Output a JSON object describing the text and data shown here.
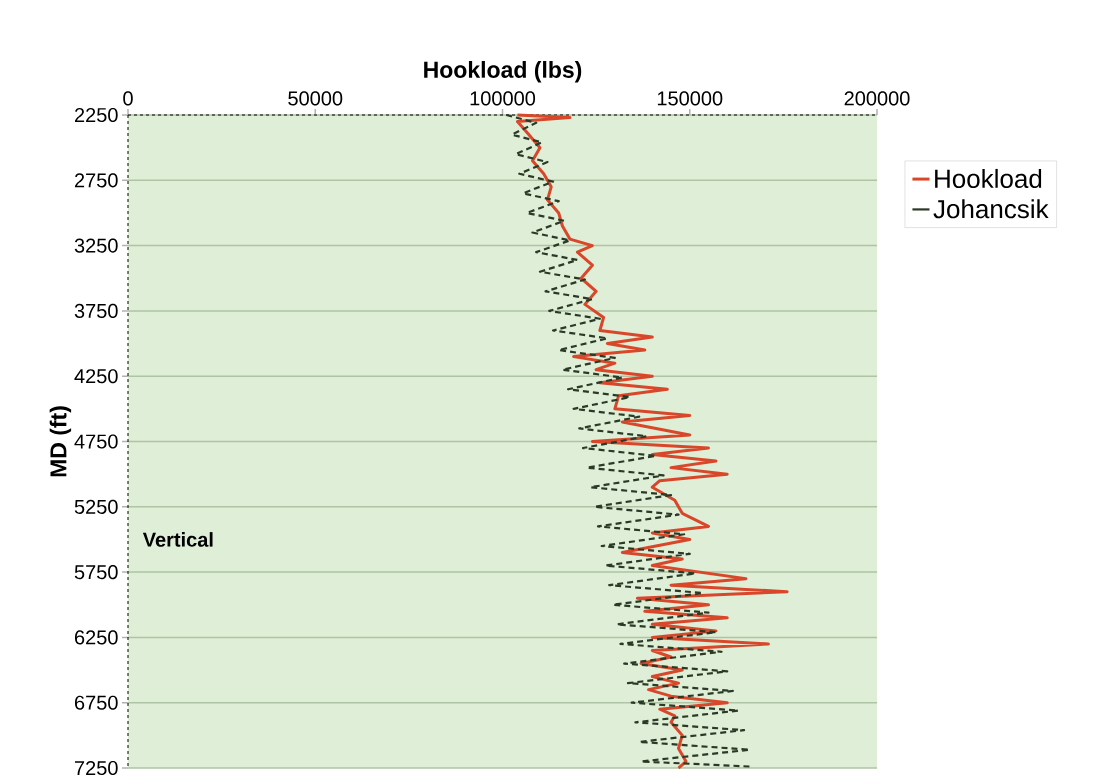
{
  "chart_data": {
    "type": "line",
    "xlabel": "Hookload (lbs)",
    "ylabel": "MD (ft)",
    "xlim": [
      0,
      200000
    ],
    "xticks": [
      0,
      50000,
      100000,
      150000,
      200000
    ],
    "ylim": [
      7250,
      2250
    ],
    "yticks": [
      2250,
      2750,
      3250,
      3750,
      4250,
      4750,
      5250,
      5750,
      6250,
      6750,
      7250
    ],
    "grid": "y",
    "legend": "right",
    "annotations": [
      "Vertical"
    ],
    "series": [
      {
        "name": "Hookload",
        "type": "line",
        "color": "#d9472b",
        "line_style": "solid",
        "x": [
          104000,
          118000,
          104000,
          107000,
          110000,
          108000,
          111000,
          113000,
          112000,
          115000,
          116000,
          118000,
          124000,
          120000,
          124000,
          121000,
          125000,
          122000,
          127000,
          126000,
          140000,
          128000,
          138000,
          119000,
          130000,
          125000,
          140000,
          126000,
          144000,
          131000,
          130000,
          150000,
          132000,
          150000,
          124000,
          155000,
          140000,
          157000,
          145000,
          160000,
          142000,
          140000,
          146000,
          148000,
          155000,
          140000,
          150000,
          132000,
          148000,
          140000,
          165000,
          145000,
          176000,
          136000,
          155000,
          138000,
          160000,
          140000,
          157000,
          140000,
          171000,
          140000,
          145000,
          137000,
          148000,
          140000,
          147000,
          139000,
          145000,
          160000,
          142000,
          146000,
          145000,
          148000,
          147000,
          149000,
          147000
        ],
        "values": [
          2250,
          2270,
          2300,
          2400,
          2500,
          2600,
          2700,
          2800,
          2900,
          3000,
          3100,
          3200,
          3250,
          3300,
          3400,
          3500,
          3600,
          3700,
          3800,
          3900,
          3950,
          4000,
          4050,
          4100,
          4150,
          4200,
          4250,
          4300,
          4350,
          4400,
          4500,
          4550,
          4600,
          4700,
          4750,
          4800,
          4850,
          4900,
          4950,
          5000,
          5050,
          5100,
          5200,
          5300,
          5400,
          5450,
          5500,
          5600,
          5650,
          5700,
          5800,
          5850,
          5900,
          5950,
          6000,
          6050,
          6100,
          6150,
          6200,
          6250,
          6300,
          6350,
          6400,
          6450,
          6500,
          6550,
          6600,
          6650,
          6700,
          6750,
          6800,
          6850,
          6900,
          7000,
          7100,
          7200,
          7250
        ]
      },
      {
        "name": "Johancsik",
        "type": "line",
        "color": "#2b3a26",
        "line_style": "dashed",
        "x": [
          101000,
          109000,
          102500,
          110500,
          103500,
          112000,
          104500,
          113500,
          105500,
          115000,
          106500,
          116500,
          108000,
          118000,
          109000,
          120000,
          110000,
          122000,
          111500,
          124000,
          112500,
          126000,
          113500,
          128000,
          115000,
          130000,
          116000,
          132000,
          117500,
          134000,
          119000,
          136500,
          120500,
          138500,
          121500,
          141000,
          122500,
          143000,
          123500,
          145000,
          124500,
          147000,
          125500,
          148500,
          126500,
          150000,
          127500,
          151500,
          128500,
          153500,
          129500,
          155000,
          130500,
          157000,
          131500,
          158500,
          132500,
          160000,
          133500,
          161500,
          134500,
          163000,
          135500,
          164500,
          136500,
          166000,
          137000,
          167000
        ],
        "values": [
          2250,
          2310,
          2400,
          2460,
          2550,
          2610,
          2700,
          2760,
          2850,
          2910,
          3000,
          3060,
          3150,
          3210,
          3300,
          3360,
          3450,
          3510,
          3600,
          3660,
          3750,
          3810,
          3900,
          3960,
          4050,
          4110,
          4200,
          4260,
          4350,
          4410,
          4500,
          4560,
          4650,
          4710,
          4800,
          4860,
          4950,
          5010,
          5100,
          5160,
          5250,
          5310,
          5400,
          5460,
          5550,
          5610,
          5700,
          5760,
          5850,
          5910,
          6000,
          6060,
          6150,
          6210,
          6300,
          6360,
          6450,
          6510,
          6600,
          6660,
          6750,
          6810,
          6900,
          6960,
          7050,
          7110,
          7200,
          7240
        ]
      }
    ]
  }
}
